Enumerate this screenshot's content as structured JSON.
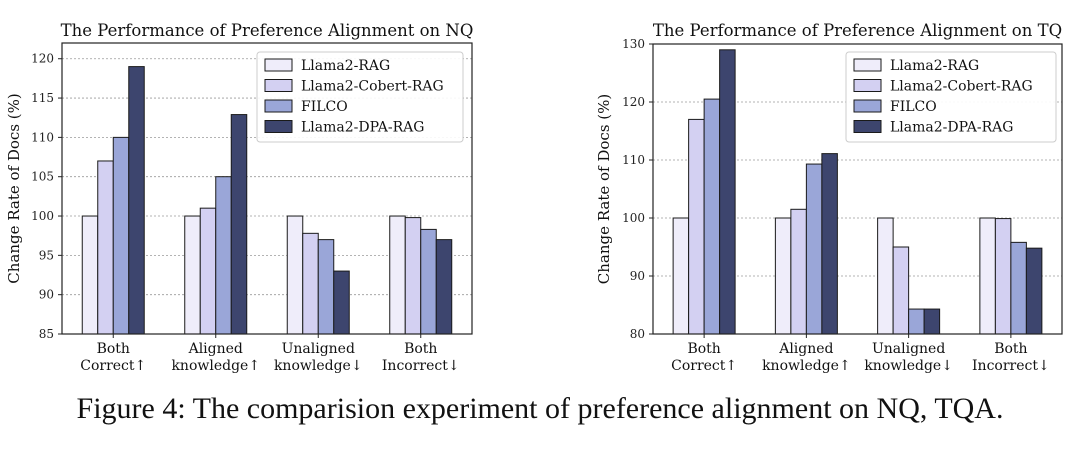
{
  "caption": "Figure 4: The comparision experiment of preference alignment on NQ, TQA.",
  "chart_data": [
    {
      "type": "bar",
      "title": "The Performance of Preference Alignment on NQ",
      "ylabel": "Change Rate of Docs (%)",
      "xlabel": "",
      "ylim": [
        85,
        122
      ],
      "yticks": [
        "85",
        "90",
        "95",
        "100",
        "105",
        "110",
        "115",
        "120"
      ],
      "grid": "y-dotted",
      "legend_position": "top-right",
      "categories": [
        [
          "Both",
          "Correct↑"
        ],
        [
          "Aligned",
          "knowledge↑"
        ],
        [
          "Unaligned",
          "knowledge↓"
        ],
        [
          "Both",
          "Incorrect↓"
        ]
      ],
      "series": [
        {
          "name": "Llama2-RAG",
          "color": "#efedfa",
          "values": [
            100,
            100,
            100,
            100
          ]
        },
        {
          "name": "Llama2-Cobert-RAG",
          "color": "#d3d0f2",
          "values": [
            107,
            101,
            97.8,
            99.8
          ]
        },
        {
          "name": "FILCO",
          "color": "#9aa6d8",
          "values": [
            110,
            105,
            97,
            98.3
          ]
        },
        {
          "name": "Llama2-DPA-RAG",
          "color": "#3d456e",
          "values": [
            119,
            112.9,
            93,
            97
          ]
        }
      ]
    },
    {
      "type": "bar",
      "title": "The Performance of Preference Alignment on TQ",
      "ylabel": "Change Rate of Docs (%)",
      "xlabel": "",
      "ylim": [
        80,
        130
      ],
      "yticks": [
        "80",
        "90",
        "100",
        "110",
        "120",
        "130"
      ],
      "grid": "y-dotted",
      "legend_position": "top-right",
      "categories": [
        [
          "Both",
          "Correct↑"
        ],
        [
          "Aligned",
          "knowledge↑"
        ],
        [
          "Unaligned",
          "knowledge↓"
        ],
        [
          "Both",
          "Incorrect↓"
        ]
      ],
      "series": [
        {
          "name": "Llama2-RAG",
          "color": "#efedfa",
          "values": [
            100,
            100,
            100,
            100
          ]
        },
        {
          "name": "Llama2-Cobert-RAG",
          "color": "#d3d0f2",
          "values": [
            117,
            101.5,
            95,
            99.9
          ]
        },
        {
          "name": "FILCO",
          "color": "#9aa6d8",
          "values": [
            120.5,
            109.3,
            84.3,
            95.8
          ]
        },
        {
          "name": "Llama2-DPA-RAG",
          "color": "#3d456e",
          "values": [
            129,
            111.1,
            84.3,
            94.8
          ]
        }
      ]
    }
  ]
}
